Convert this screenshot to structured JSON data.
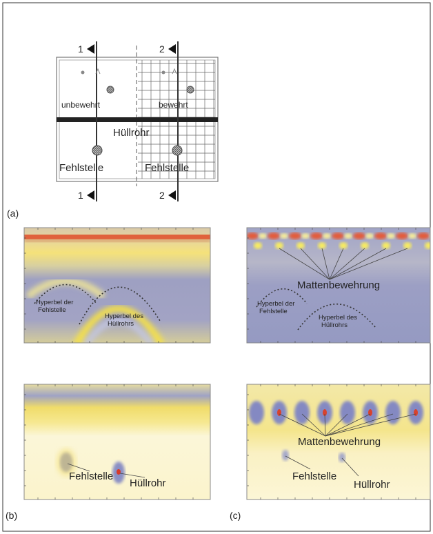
{
  "schematic": {
    "section_labels_top": [
      "1",
      "2"
    ],
    "section_labels_bottom": [
      "1",
      "2"
    ],
    "zones": [
      "unbewehrt",
      "bewehrt"
    ],
    "pipe": "Hüllrohr",
    "defects": [
      "Fehlstelle",
      "Fehlstelle"
    ],
    "label": "(a)"
  },
  "panels": [
    {
      "annotations": [
        [
          "Hyperbel der",
          "Fehlstelle"
        ],
        [
          "Hyperbel des",
          "Hüllrohrs"
        ]
      ]
    },
    {
      "annotations": [
        [
          "Mattenbewehrung"
        ],
        [
          "Hyperbel der",
          "Fehlstelle"
        ],
        [
          "Hyperbel des",
          "Hüllrohrs"
        ]
      ]
    },
    {
      "annotations": [
        [
          "Fehlstelle"
        ],
        [
          "Hüllrohr"
        ]
      ],
      "label": "(b)"
    },
    {
      "annotations": [
        [
          "Mattenbewehrung"
        ],
        [
          "Fehlstelle"
        ],
        [
          "Hüllrohr"
        ]
      ],
      "label": "(c)"
    }
  ]
}
